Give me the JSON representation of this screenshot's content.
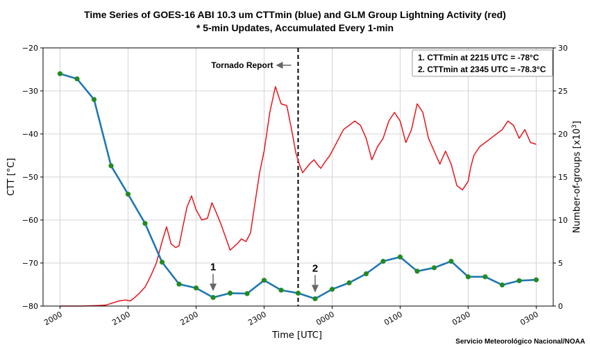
{
  "chart_data": {
    "type": "line",
    "title_line1": "Time Series of GOES-16 ABI 10.3 um CTTmin (blue) and GLM Group Lightning Activity (red)",
    "title_line2": "* 5-min Updates, Accumulated Every 1-min",
    "xlabel": "Time [UTC]",
    "ylabel_left": "CTT [°C]",
    "ylabel_right_main": "Number-of-groups [x10",
    "ylabel_right_sup": "3",
    "ylabel_right_close": "]",
    "x_ticks": [
      {
        "x": 0,
        "label": "2000"
      },
      {
        "x": 60,
        "label": "2100"
      },
      {
        "x": 120,
        "label": "2200"
      },
      {
        "x": 180,
        "label": "2300"
      },
      {
        "x": 240,
        "label": "0000"
      },
      {
        "x": 300,
        "label": "0100"
      },
      {
        "x": 360,
        "label": "0200"
      },
      {
        "x": 420,
        "label": "0300"
      }
    ],
    "xlim": [
      -15,
      435
    ],
    "ylim_left": [
      -80,
      -20
    ],
    "yticks_left": [
      -80,
      -70,
      -60,
      -50,
      -40,
      -30,
      -20
    ],
    "ylim_right": [
      0,
      30
    ],
    "yticks_right": [
      0,
      5,
      10,
      15,
      20,
      25,
      30
    ],
    "grid": true,
    "series": [
      {
        "name": "CTTmin",
        "axis": "left",
        "color": "#1f77b4",
        "marker_color": "#228b22",
        "x": [
          0,
          15,
          30,
          45,
          60,
          75,
          90,
          105,
          120,
          135,
          150,
          165,
          180,
          195,
          210,
          225,
          240,
          255,
          270,
          285,
          300,
          315,
          330,
          345,
          360,
          375,
          390,
          405,
          420
        ],
        "y": [
          -26.0,
          -27.2,
          -32.0,
          -47.4,
          -54.0,
          -60.8,
          -69.8,
          -74.9,
          -75.8,
          -78.0,
          -77.0,
          -77.1,
          -74.0,
          -76.3,
          -77.0,
          -78.3,
          -76.1,
          -74.6,
          -72.5,
          -69.6,
          -68.6,
          -71.9,
          -71.1,
          -69.6,
          -73.2,
          -73.2,
          -75.1,
          -74.1,
          -73.9
        ]
      },
      {
        "name": "GLM Group Lightning Activity",
        "axis": "right",
        "color": "#e8141c",
        "x": [
          0,
          20,
          40,
          45,
          52,
          58,
          62,
          66,
          70,
          75,
          80,
          85,
          90,
          94,
          98,
          102,
          105,
          108,
          112,
          116,
          120,
          125,
          130,
          134,
          138,
          142,
          146,
          150,
          156,
          160,
          164,
          168,
          172,
          176,
          180,
          185,
          190,
          195,
          200,
          205,
          208,
          211,
          214,
          217,
          220,
          224,
          228,
          230,
          234,
          238,
          242,
          246,
          250,
          255,
          260,
          265,
          270,
          275,
          280,
          285,
          290,
          295,
          300,
          305,
          310,
          315,
          320,
          325,
          330,
          335,
          340,
          345,
          350,
          355,
          360,
          362,
          365,
          370,
          375,
          380,
          385,
          390,
          395,
          400,
          405,
          410,
          415,
          420
        ],
        "y": [
          0,
          0,
          0.1,
          0.3,
          0.6,
          0.7,
          0.6,
          1.0,
          1.5,
          2.2,
          3.5,
          5.0,
          7.5,
          9.2,
          7.2,
          6.8,
          7.0,
          9.0,
          11.5,
          12.8,
          11.2,
          10.0,
          10.2,
          12.0,
          10.8,
          9.5,
          8.0,
          6.5,
          7.2,
          7.8,
          7.5,
          8.5,
          12.0,
          15.5,
          18.0,
          22.5,
          25.5,
          23.5,
          23.3,
          20.0,
          17.8,
          16.5,
          15.5,
          16.0,
          16.5,
          17.0,
          16.3,
          16.0,
          16.8,
          17.5,
          18.5,
          19.5,
          20.5,
          21.0,
          21.5,
          21.0,
          19.5,
          17.0,
          18.5,
          19.5,
          21.5,
          22.5,
          21.5,
          19.0,
          20.5,
          23.5,
          22.5,
          19.5,
          18.0,
          16.5,
          18.0,
          16.5,
          14.0,
          13.5,
          14.5,
          16.0,
          17.5,
          18.5,
          19.0,
          19.5,
          20.0,
          20.5,
          21.5,
          21.0,
          19.5,
          20.5,
          19.0,
          18.8
        ]
      }
    ],
    "tornado_report": {
      "x": 210,
      "label": "Tornado Report"
    },
    "annotations": [
      {
        "label": "1",
        "x": 135,
        "y": -78.0
      },
      {
        "label": "2",
        "x": 225,
        "y": -78.3
      }
    ],
    "info_box": [
      "1. CTTmin at 2215 UTC = -78°C",
      "2. CTTmin at 2345 UTC = -78.3°C"
    ],
    "credit": "Servicio Meteorológico Nacional/NOAA",
    "colors": {
      "grid": "#d4d4d4",
      "arrow": "#666666"
    }
  }
}
